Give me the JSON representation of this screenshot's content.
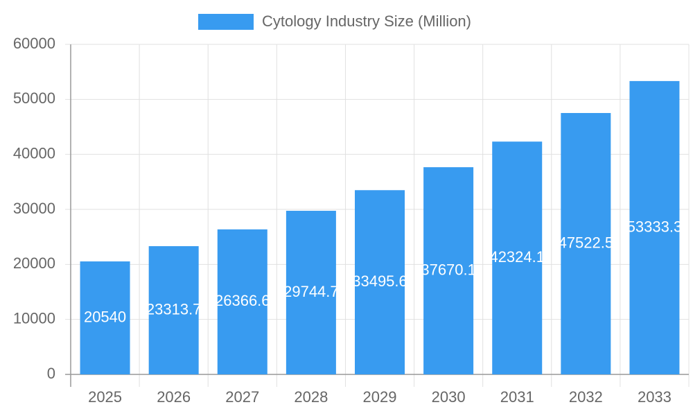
{
  "chart_data": {
    "type": "bar",
    "series": [
      {
        "name": "Cytology Industry Size (Million)",
        "color": "#389bf0",
        "values": [
          20540,
          23313.7,
          26366.6,
          29744.7,
          33495.6,
          37670.1,
          42324.1,
          47522.5,
          53333.3
        ]
      }
    ],
    "categories": [
      "2025",
      "2026",
      "2027",
      "2028",
      "2029",
      "2030",
      "2031",
      "2032",
      "2033"
    ],
    "ylim": [
      0,
      60000
    ],
    "yticks": [
      0,
      10000,
      20000,
      30000,
      40000,
      50000,
      60000
    ],
    "grid": true,
    "legend": "top"
  }
}
